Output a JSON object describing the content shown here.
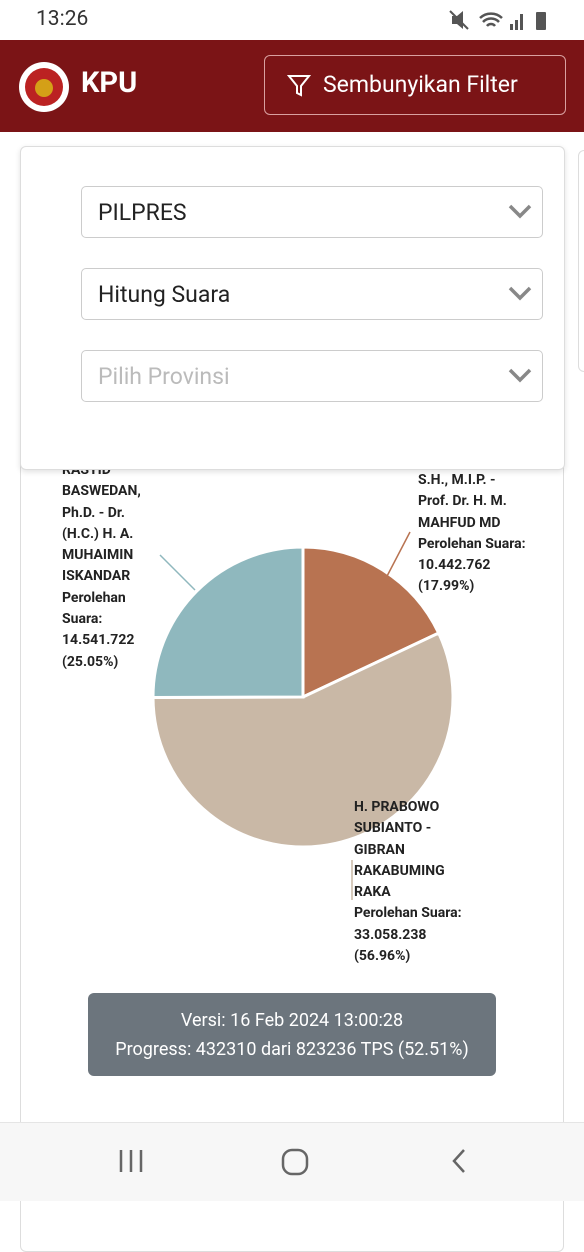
{
  "status_bar": {
    "time": "13:26"
  },
  "header": {
    "logo_text": "KPU",
    "filter_button": "Sembunyikan Filter"
  },
  "filters": [
    "PILPRES",
    "Hitung Suara",
    "Pilih Provinsi"
  ],
  "chart_data": {
    "type": "pie",
    "categories": [
      "S.H., M.I.P. - Prof. Dr. H. M. MAHFUD MD",
      "H. PRABOWO SUBIANTO - GIBRAN RAKABUMING RAKA",
      "RASYID BASWEDAN, Ph.D. - Dr. (H.C.) H. A. MUHAIMIN ISKANDAR"
    ],
    "caption": "Perolehan Suara:",
    "votes": [
      {
        "value": 10442762,
        "label": "10.442.762"
      },
      {
        "value": 33058238,
        "label": "33.058.238"
      },
      {
        "value": 14541722,
        "label": "14.541.722"
      }
    ],
    "values": [
      17.99,
      56.96,
      25.05
    ],
    "value_labels": [
      "(17.99%)",
      "(56.96%)",
      "(25.05%)"
    ],
    "colors": [
      "#b87351",
      "#c9b8a6",
      "#8fb8be"
    ]
  },
  "version_box": {
    "version": "Versi: 16 Feb 2024 13:00:28",
    "progress": "Progress: 432310 dari 823236 TPS (52.51%)"
  },
  "nav": {}
}
